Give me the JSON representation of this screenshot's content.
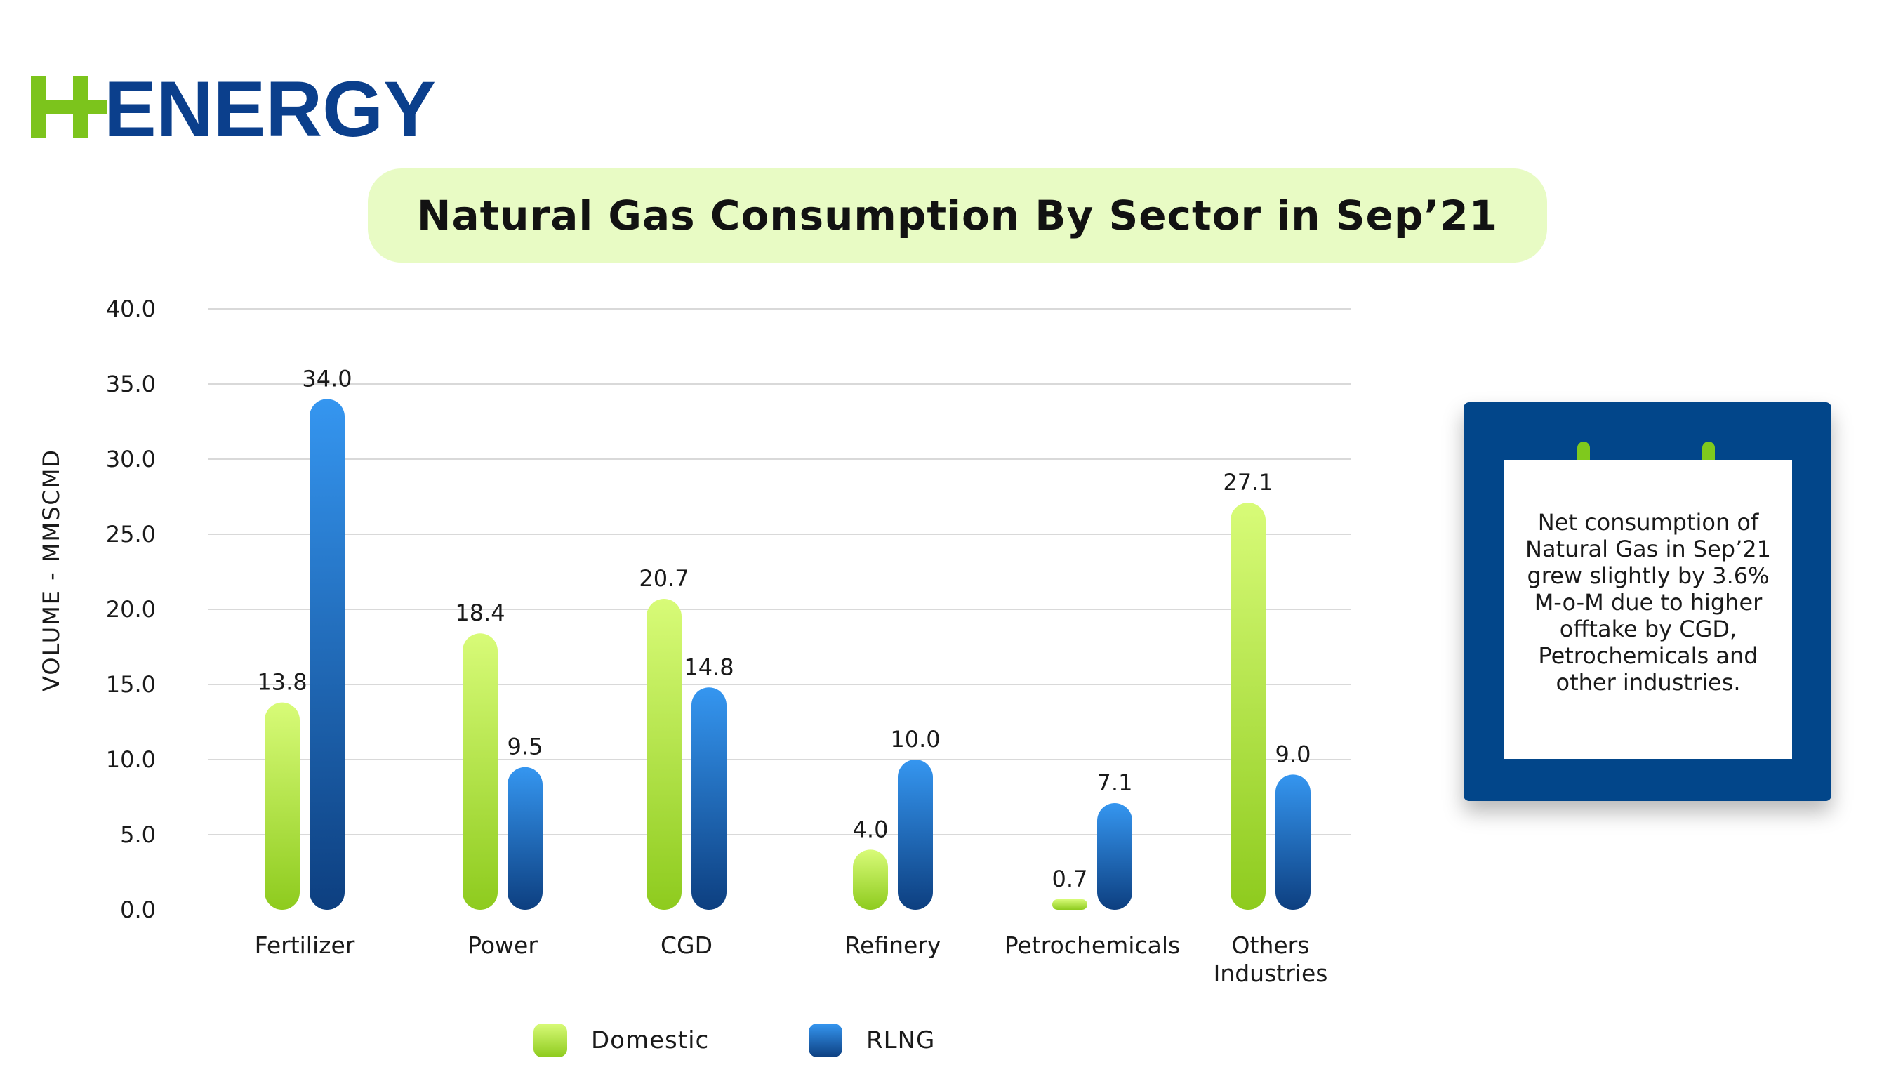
{
  "logo": {
    "text_h": "H",
    "text_energy": "ENERGY",
    "colors": {
      "h": "#7cc41c",
      "energy": "#0b3f8c"
    }
  },
  "title": "Natural Gas Consumption By Sector in Sep’21",
  "note": {
    "text": "Net consumption of Natural Gas in Sep’21 grew slightly by 3.6% M-o-M due to higher offtake by CGD, Petrochemicals and other industries."
  },
  "colors": {
    "domestic": "#9fd92e",
    "rlng": "#1f6fd0",
    "grid": "#d9d9d9",
    "note_bg": "#02468a"
  },
  "chart_data": {
    "type": "bar",
    "title": "Natural Gas Consumption By Sector in Sep’21",
    "ylabel": "VOLUME - MMSCMD",
    "xlabel": "",
    "ylim": [
      0,
      40
    ],
    "yticks": [
      "0.0",
      "5.0",
      "10.0",
      "15.0",
      "20.0",
      "25.0",
      "30.0",
      "35.0",
      "40.0"
    ],
    "grid": true,
    "legend_position": "bottom",
    "categories": [
      "Fertilizer",
      "Power",
      "CGD",
      "Refinery",
      "Petrochemicals",
      "Others Industries"
    ],
    "series": [
      {
        "name": "Domestic",
        "values": [
          13.8,
          18.4,
          20.7,
          4.0,
          0.7,
          27.1
        ],
        "labels": [
          "13.8",
          "18.4",
          "20.7",
          "4.0",
          "0.7",
          "27.1"
        ]
      },
      {
        "name": "RLNG",
        "values": [
          34.0,
          9.5,
          14.8,
          10.0,
          7.1,
          9.0
        ],
        "labels": [
          "34.0",
          "9.5",
          "14.8",
          "10.0",
          "7.1",
          "9.0"
        ]
      }
    ]
  }
}
